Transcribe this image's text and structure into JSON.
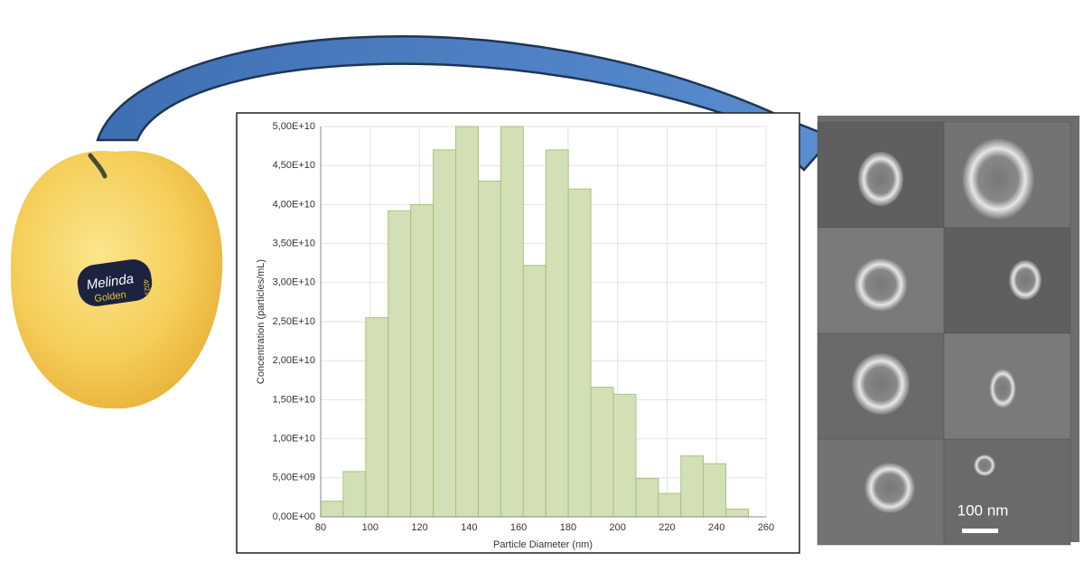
{
  "chart_data": {
    "type": "histogram",
    "x_label": "Particle Diameter (nm)",
    "y_label": "Concentration (particles/mL)",
    "bins": [
      80,
      89.1,
      98.2,
      107.3,
      116.4,
      125.5,
      134.6,
      143.7,
      152.8,
      161.9,
      171,
      180.1,
      189.2,
      198.3,
      207.4,
      216.5,
      225.6,
      234.7,
      243.8,
      252.9
    ],
    "values": [
      2000000000.0,
      5800000000.0,
      25500000000.0,
      39200000000.0,
      40000000000.0,
      47000000000.0,
      50000000000.0,
      43000000000.0,
      50000000000.0,
      32200000000.0,
      47000000000.0,
      42000000000.0,
      16600000000.0,
      15700000000.0,
      4900000000.0,
      3000000000.0,
      7800000000.0,
      6800000000.0,
      1000000000.0
    ],
    "color": "#d3e0b5",
    "edge_color": "#a9c27e",
    "xlim": [
      80,
      260
    ],
    "xticks": [
      80,
      100,
      120,
      140,
      160,
      180,
      200,
      220,
      240,
      260
    ],
    "ylim": [
      0,
      50000000000.0
    ],
    "yticks": [
      {
        "value": 0,
        "label": "0,00E+00"
      },
      {
        "value": 5000000000.0,
        "label": "5,00E+09"
      },
      {
        "value": 10000000000.0,
        "label": "1,00E+10"
      },
      {
        "value": 15000000000.0,
        "label": "1,50E+10"
      },
      {
        "value": 20000000000.0,
        "label": "2,00E+10"
      },
      {
        "value": 25000000000.0,
        "label": "2,50E+10"
      },
      {
        "value": 30000000000.0,
        "label": "3,00E+10"
      },
      {
        "value": 35000000000.0,
        "label": "3,50E+10"
      },
      {
        "value": 40000000000.0,
        "label": "4,00E+10"
      },
      {
        "value": 45000000000.0,
        "label": "4,50E+10"
      },
      {
        "value": 50000000000.0,
        "label": "5,00E+10"
      }
    ],
    "grid": true
  },
  "apple_sticker": {
    "brand": "Melinda",
    "variety": "Golden",
    "code": "4021"
  },
  "micrograph": {
    "scale_bar": "100 nm"
  }
}
